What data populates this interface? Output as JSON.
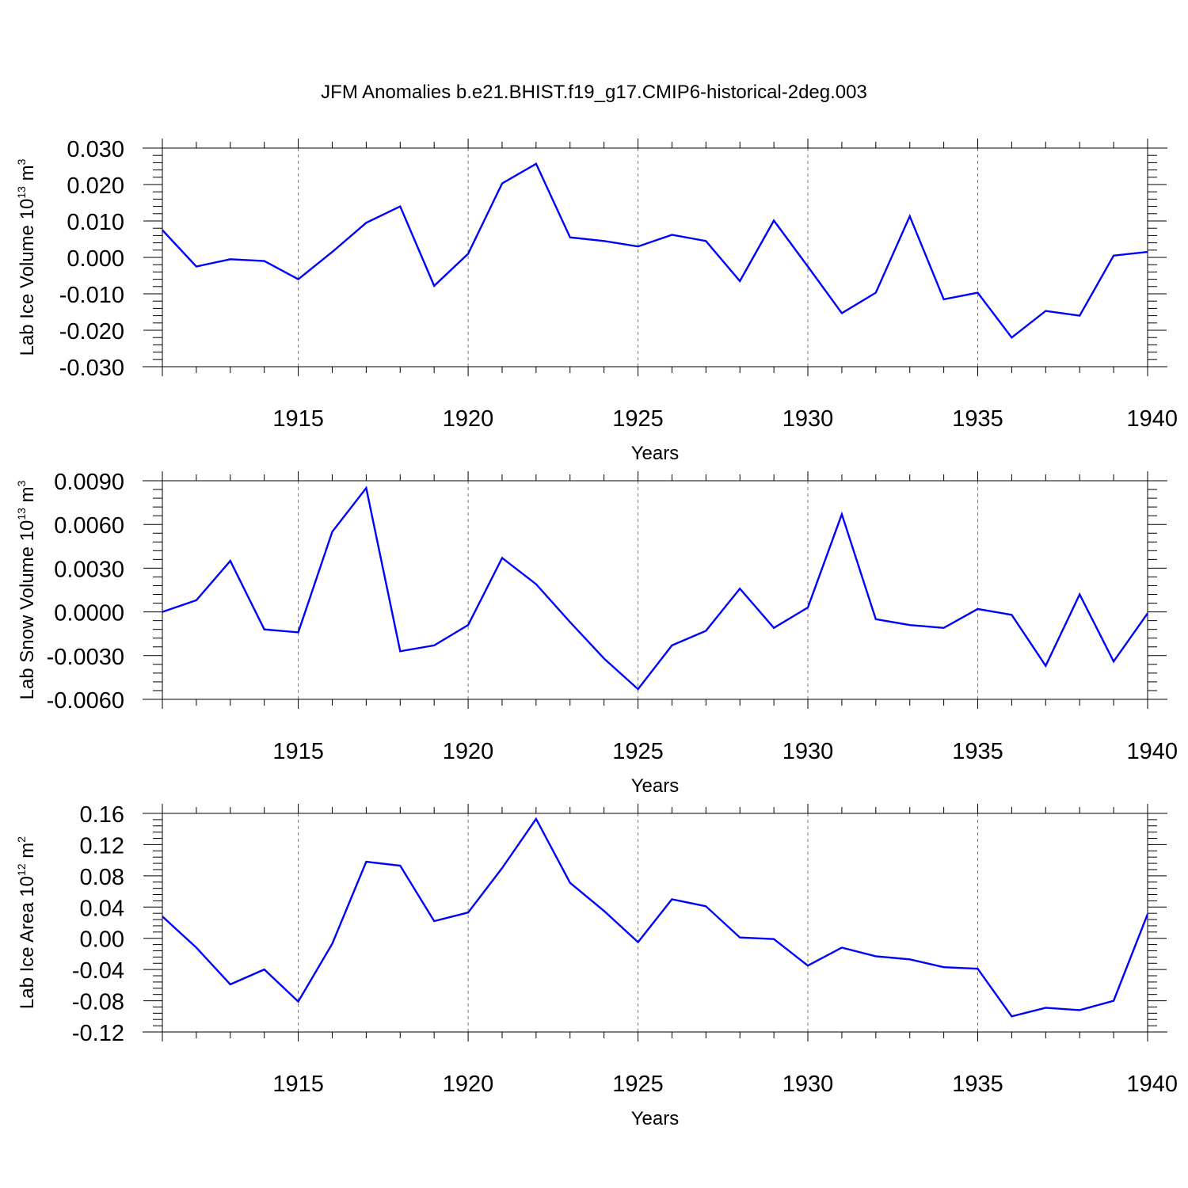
{
  "title": "JFM Anomalies b.e21.BHIST.f19_g17.CMIP6-historical-2deg.003",
  "line_color": "#0000ff",
  "chart_data": [
    {
      "type": "line",
      "ylabel_main": "Lab Ice Volume 10",
      "ylabel_exponent": "13",
      "ylabel_unit": "m",
      "ylabel_unit_exponent": "3",
      "xlabel": "Years",
      "xlim": [
        1911,
        1940
      ],
      "ylim": [
        -0.03,
        0.03
      ],
      "x_ticks": [
        1915,
        1920,
        1925,
        1930,
        1935,
        1940
      ],
      "y_ticks": [
        -0.03,
        -0.02,
        -0.01,
        0.0,
        0.01,
        0.02,
        0.03
      ],
      "y_tick_labels": [
        "-0.030",
        "-0.020",
        "-0.010",
        "0.000",
        "0.010",
        "0.020",
        "0.030"
      ],
      "gridlines_x": [
        1915,
        1920,
        1925,
        1930,
        1935
      ],
      "series": [
        {
          "name": "Lab Ice Volume",
          "x": [
            1911,
            1912,
            1913,
            1914,
            1915,
            1916,
            1917,
            1918,
            1919,
            1920,
            1921,
            1922,
            1923,
            1924,
            1925,
            1926,
            1927,
            1928,
            1929,
            1930,
            1931,
            1932,
            1933,
            1934,
            1935,
            1936,
            1937,
            1938,
            1939,
            1940
          ],
          "values": [
            0.0075,
            -0.0025,
            -0.0005,
            -0.001,
            -0.006,
            0.0015,
            0.0095,
            0.014,
            -0.0078,
            0.001,
            0.0203,
            0.0257,
            0.0055,
            0.0045,
            0.003,
            0.0062,
            0.0045,
            -0.0065,
            0.0101,
            -0.0025,
            -0.0153,
            -0.0097,
            0.0113,
            -0.0115,
            -0.0097,
            -0.022,
            -0.0147,
            -0.016,
            0.0005,
            0.0015
          ]
        }
      ]
    },
    {
      "type": "line",
      "ylabel_main": "Lab Snow Volume 10",
      "ylabel_exponent": "13",
      "ylabel_unit": "m",
      "ylabel_unit_exponent": "3",
      "xlabel": "Years",
      "xlim": [
        1911,
        1940
      ],
      "ylim": [
        -0.006,
        0.009
      ],
      "x_ticks": [
        1915,
        1920,
        1925,
        1930,
        1935,
        1940
      ],
      "y_ticks": [
        -0.006,
        -0.003,
        0.0,
        0.003,
        0.006,
        0.009
      ],
      "y_tick_labels": [
        "-0.0060",
        "-0.0030",
        "0.0000",
        "0.0030",
        "0.0060",
        "0.0090"
      ],
      "gridlines_x": [
        1915,
        1920,
        1925,
        1930,
        1935
      ],
      "series": [
        {
          "name": "Lab Snow Volume",
          "x": [
            1911,
            1912,
            1913,
            1914,
            1915,
            1916,
            1917,
            1918,
            1919,
            1920,
            1921,
            1922,
            1923,
            1924,
            1925,
            1926,
            1927,
            1928,
            1929,
            1930,
            1931,
            1932,
            1933,
            1934,
            1935,
            1936,
            1937,
            1938,
            1939,
            1940
          ],
          "values": [
            0.0,
            0.0008,
            0.0035,
            -0.0012,
            -0.0014,
            0.0055,
            0.0085,
            -0.0027,
            -0.0023,
            -0.0009,
            0.0037,
            0.0019,
            -0.0007,
            -0.0032,
            -0.0053,
            -0.0023,
            -0.0013,
            0.0016,
            -0.0011,
            0.0003,
            0.0067,
            -0.0005,
            -0.0009,
            -0.0011,
            0.0002,
            -0.0002,
            -0.0037,
            0.0012,
            -0.0034,
            -0.0001
          ]
        }
      ]
    },
    {
      "type": "line",
      "ylabel_main": "Lab Ice Area 10",
      "ylabel_exponent": "12",
      "ylabel_unit": "m",
      "ylabel_unit_exponent": "2",
      "xlabel": "Years",
      "xlim": [
        1911,
        1940
      ],
      "ylim": [
        -0.12,
        0.16
      ],
      "x_ticks": [
        1915,
        1920,
        1925,
        1930,
        1935,
        1940
      ],
      "y_ticks": [
        -0.12,
        -0.08,
        -0.04,
        0.0,
        0.04,
        0.08,
        0.12,
        0.16
      ],
      "y_tick_labels": [
        "-0.12",
        "-0.08",
        "-0.04",
        "0.00",
        "0.04",
        "0.08",
        "0.12",
        "0.16"
      ],
      "gridlines_x": [
        1915,
        1920,
        1925,
        1930,
        1935
      ],
      "series": [
        {
          "name": "Lab Ice Area",
          "x": [
            1911,
            1912,
            1913,
            1914,
            1915,
            1916,
            1917,
            1918,
            1919,
            1920,
            1921,
            1922,
            1923,
            1924,
            1925,
            1926,
            1927,
            1928,
            1929,
            1930,
            1931,
            1932,
            1933,
            1934,
            1935,
            1936,
            1937,
            1938,
            1939,
            1940
          ],
          "values": [
            0.028,
            -0.012,
            -0.059,
            -0.04,
            -0.081,
            -0.007,
            0.098,
            0.093,
            0.022,
            0.033,
            0.09,
            0.153,
            0.071,
            0.035,
            -0.005,
            0.05,
            0.041,
            0.001,
            -0.001,
            -0.035,
            -0.012,
            -0.023,
            -0.027,
            -0.037,
            -0.039,
            -0.1,
            -0.089,
            -0.092,
            -0.08,
            0.031
          ]
        }
      ]
    }
  ]
}
